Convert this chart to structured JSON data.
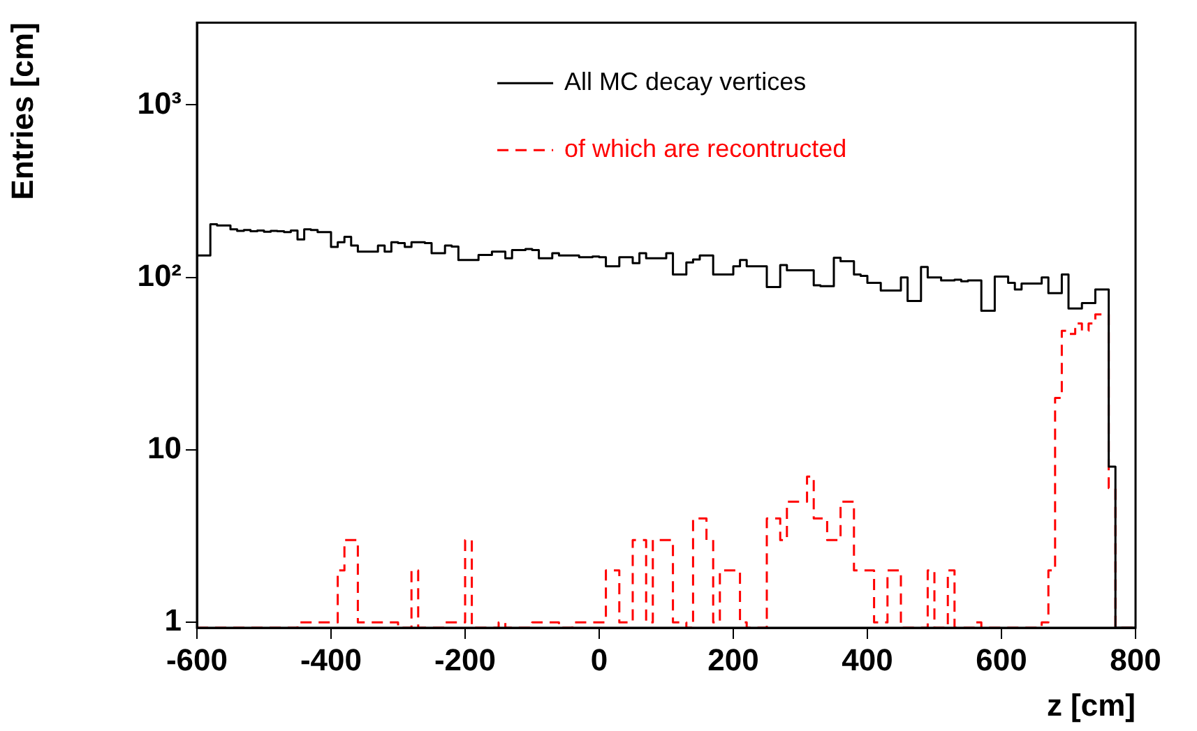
{
  "chart_data": {
    "type": "histogram",
    "xlabel": "z [cm]",
    "ylabel": "Entries [cm]",
    "bins": [
      -600,
      -590,
      -580,
      -570,
      -560,
      -550,
      -540,
      -530,
      -520,
      -510,
      -500,
      -490,
      -480,
      -470,
      -460,
      -450,
      -440,
      -430,
      -420,
      -410,
      -400,
      -390,
      -380,
      -370,
      -360,
      -350,
      -340,
      -330,
      -320,
      -310,
      -300,
      -290,
      -280,
      -270,
      -260,
      -250,
      -240,
      -230,
      -220,
      -210,
      -200,
      -190,
      -180,
      -170,
      -160,
      -150,
      -140,
      -130,
      -120,
      -110,
      -100,
      -90,
      -80,
      -70,
      -60,
      -50,
      -40,
      -30,
      -20,
      -10,
      0,
      10,
      20,
      30,
      40,
      50,
      60,
      70,
      80,
      90,
      100,
      110,
      120,
      130,
      140,
      150,
      160,
      170,
      180,
      190,
      200,
      210,
      220,
      230,
      240,
      250,
      260,
      270,
      280,
      290,
      300,
      310,
      320,
      330,
      340,
      350,
      360,
      370,
      380,
      390,
      400,
      410,
      420,
      430,
      440,
      450,
      460,
      470,
      480,
      490,
      500,
      510,
      520,
      530,
      540,
      550,
      560,
      570,
      580,
      590,
      600,
      610,
      620,
      630,
      640,
      650,
      660,
      670,
      680,
      690,
      700,
      710,
      720,
      730,
      740,
      750,
      760,
      770,
      780,
      790,
      800
    ],
    "series": [
      {
        "name": "All MC decay vertices",
        "color": "#000000",
        "line_style": "solid",
        "values": [
          134,
          134,
          203,
          200,
          200,
          190,
          186,
          188,
          185,
          187,
          184,
          186,
          185,
          183,
          187,
          166,
          190,
          188,
          183,
          183,
          150,
          160,
          172,
          153,
          141,
          141,
          141,
          153,
          141,
          160,
          158,
          150,
          160,
          160,
          158,
          138,
          138,
          153,
          151,
          126,
          126,
          126,
          135,
          135,
          141,
          141,
          129,
          144,
          144,
          146,
          144,
          129,
          129,
          138,
          134,
          134,
          134,
          131,
          131,
          132,
          131,
          116,
          116,
          131,
          131,
          121,
          138,
          129,
          129,
          129,
          138,
          104,
          104,
          122,
          127,
          134,
          134,
          104,
          104,
          104,
          116,
          126,
          116,
          116,
          116,
          88,
          88,
          118,
          110,
          110,
          110,
          110,
          90,
          89,
          89,
          130,
          124,
          124,
          104,
          102,
          93,
          93,
          84,
          84,
          84,
          100,
          73,
          73,
          115,
          100,
          100,
          96,
          96,
          97,
          95,
          96,
          96,
          64,
          64,
          101,
          101,
          93,
          85,
          92,
          92,
          92,
          100,
          81,
          81,
          104,
          66,
          66,
          71,
          71,
          85,
          85,
          8,
          null,
          null,
          null
        ]
      },
      {
        "name": "of which are recontructed",
        "color": "#ff0000",
        "line_style": "dashed",
        "values": [
          null,
          null,
          null,
          null,
          null,
          null,
          null,
          null,
          null,
          null,
          null,
          null,
          null,
          null,
          null,
          1,
          1,
          1,
          1,
          1,
          1,
          2,
          3,
          3,
          1,
          1,
          1,
          1,
          1,
          1,
          null,
          null,
          2,
          null,
          null,
          null,
          null,
          1,
          1,
          1,
          3,
          null,
          null,
          null,
          null,
          1,
          null,
          null,
          null,
          null,
          1,
          1,
          1,
          1,
          null,
          null,
          1,
          1,
          1,
          1,
          1,
          2,
          2,
          1,
          1,
          3,
          3,
          1,
          3,
          3,
          3,
          1,
          1,
          null,
          4,
          4,
          3,
          1,
          2,
          2,
          2,
          1,
          null,
          null,
          null,
          4,
          4,
          3,
          5,
          5,
          5,
          7,
          4,
          4,
          3,
          3,
          5,
          5,
          2,
          2,
          2,
          1,
          1,
          2,
          2,
          null,
          null,
          null,
          null,
          2,
          null,
          null,
          2,
          null,
          null,
          null,
          1,
          null,
          null,
          null,
          null,
          null,
          null,
          null,
          null,
          null,
          1,
          2,
          20,
          49,
          47,
          54,
          49,
          54,
          61,
          61,
          6,
          null,
          null,
          null
        ]
      }
    ],
    "xlim": [
      -600,
      800
    ],
    "xticks": [
      -600,
      -400,
      -200,
      0,
      200,
      400,
      600,
      800
    ],
    "log": "y",
    "ylim": [
      0.93,
      3000
    ],
    "yticks": [
      1,
      10,
      {
        "value": 100,
        "label": "10²"
      },
      {
        "value": 1000,
        "label": "10³"
      }
    ],
    "grid": false,
    "legend": "top right"
  }
}
